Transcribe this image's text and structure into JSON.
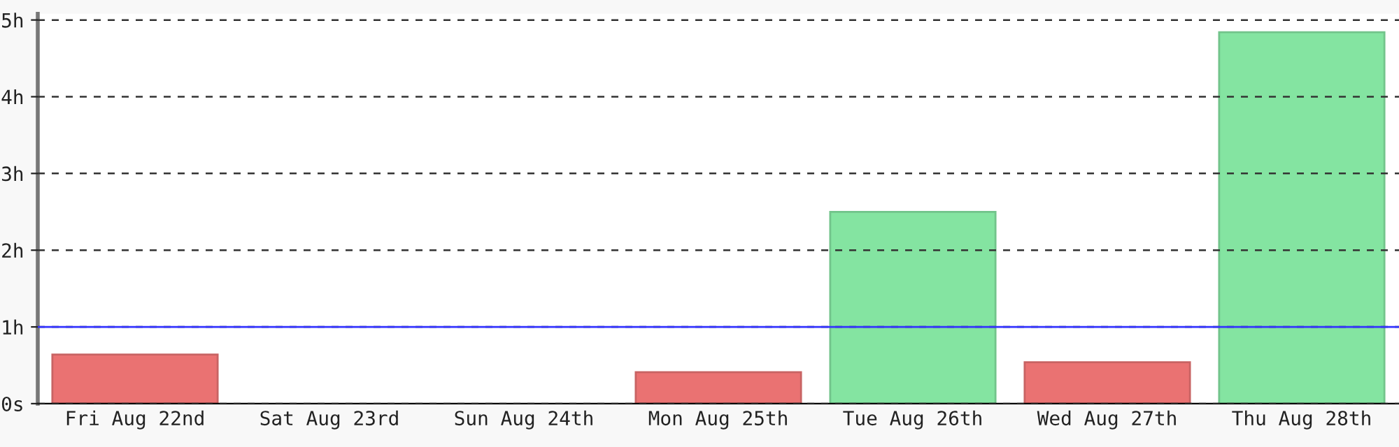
{
  "chart_data": {
    "type": "bar",
    "categories": [
      "Fri Aug 22nd",
      "Sat Aug 23rd",
      "Sun Aug 24th",
      "Mon Aug 25th",
      "Tue Aug 26th",
      "Wed Aug 27th",
      "Thu Aug 28th"
    ],
    "values": [
      0.64,
      0,
      0,
      0.41,
      2.5,
      0.54,
      4.84
    ],
    "colors": [
      "#e96b6b",
      "#e96b6b",
      "#e96b6b",
      "#e96b6b",
      "#7ee39c",
      "#e96b6b",
      "#7ee39c"
    ],
    "ylim": [
      0,
      5.08
    ],
    "yticks": [
      {
        "value": 0,
        "label": "0s"
      },
      {
        "value": 1,
        "label": "1h"
      },
      {
        "value": 2,
        "label": "2h"
      },
      {
        "value": 3,
        "label": "3h"
      },
      {
        "value": 4,
        "label": "4h"
      },
      {
        "value": 5,
        "label": "5h"
      }
    ],
    "grid": "y",
    "line_style": "dashed",
    "ref_lines": [
      {
        "axis": "y",
        "value": 1,
        "label": null,
        "color": "#3333ff"
      }
    ]
  }
}
